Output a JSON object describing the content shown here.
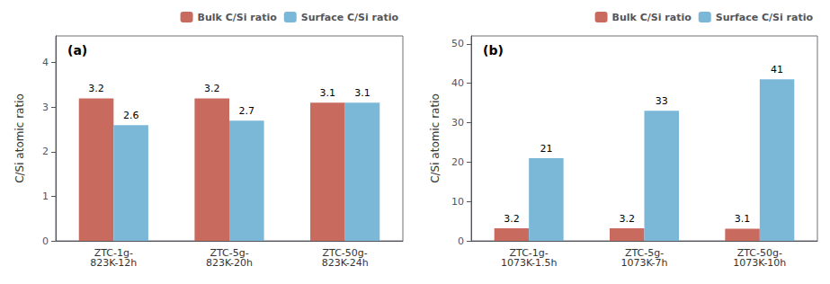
{
  "chart_data": [
    {
      "type": "bar",
      "title": "(a)",
      "categories": [
        "ZTC-1g-\n823K-12h",
        "ZTC-5g-\n823K-20h",
        "ZTC-50g-\n823K-24h"
      ],
      "series": [
        {
          "name": "Bulk C/Si ratio",
          "color": "#C96A5E",
          "values": [
            3.2,
            3.2,
            3.1
          ]
        },
        {
          "name": "Surface C/Si ratio",
          "color": "#7BB8D8",
          "values": [
            2.6,
            2.7,
            3.1
          ]
        }
      ],
      "ylabel": "C/Si atomic ratio",
      "ylim": [
        0,
        4.6
      ],
      "yticks": [
        0,
        1,
        2,
        3,
        4
      ],
      "data_labels": true,
      "legend": "upper right",
      "grid": false
    },
    {
      "type": "bar",
      "title": "(b)",
      "categories": [
        "ZTC-1g-\n1073K-1.5h",
        "ZTC-5g-\n1073K-7h",
        "ZTC-50g-\n1073K-10h"
      ],
      "series": [
        {
          "name": "Bulk C/Si ratio",
          "color": "#C96A5E",
          "values": [
            3.2,
            3.2,
            3.1
          ]
        },
        {
          "name": "Surface C/Si ratio",
          "color": "#7BB8D8",
          "values": [
            21,
            33,
            41
          ]
        }
      ],
      "ylabel": "C/Si atomic ratio",
      "ylim": [
        0,
        52
      ],
      "yticks": [
        0,
        10,
        20,
        30,
        40,
        50
      ],
      "data_labels": true,
      "legend": "upper right",
      "grid": false
    }
  ]
}
